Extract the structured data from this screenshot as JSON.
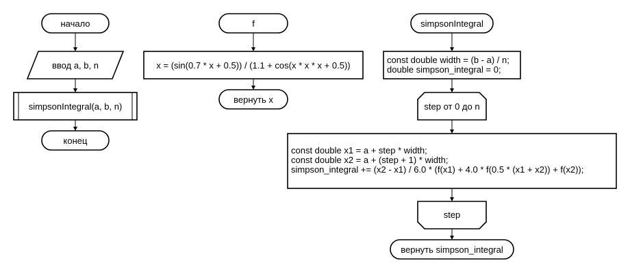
{
  "flowcharts": {
    "main": {
      "start": "начало",
      "input": "ввод a, b, n",
      "call": "simpsonIntegral(a, b, n)",
      "end": "конец"
    },
    "f": {
      "start": "f",
      "compute": "x = (sin(0.7 * x + 0.5)) / (1.1 + cos(x * x * x + 0.5))",
      "return": "вернуть x"
    },
    "simpson": {
      "start": "simpsonIntegral",
      "init_line1": "const double width = (b - a) / n;",
      "init_line2": "double simpson_integral = 0;",
      "loop_start": "step от 0 до n",
      "body_line1": "const double x1 = a + step * width;",
      "body_line2": "const double x2 = a + (step + 1) * width;",
      "body_line3": "simpson_integral += (x2 - x1) / 6.0 * (f(x1) + 4.0 * f(0.5 * (x1 + x2)) + f(x2));",
      "loop_end": "step",
      "return": "вернуть simpson_integral"
    }
  }
}
